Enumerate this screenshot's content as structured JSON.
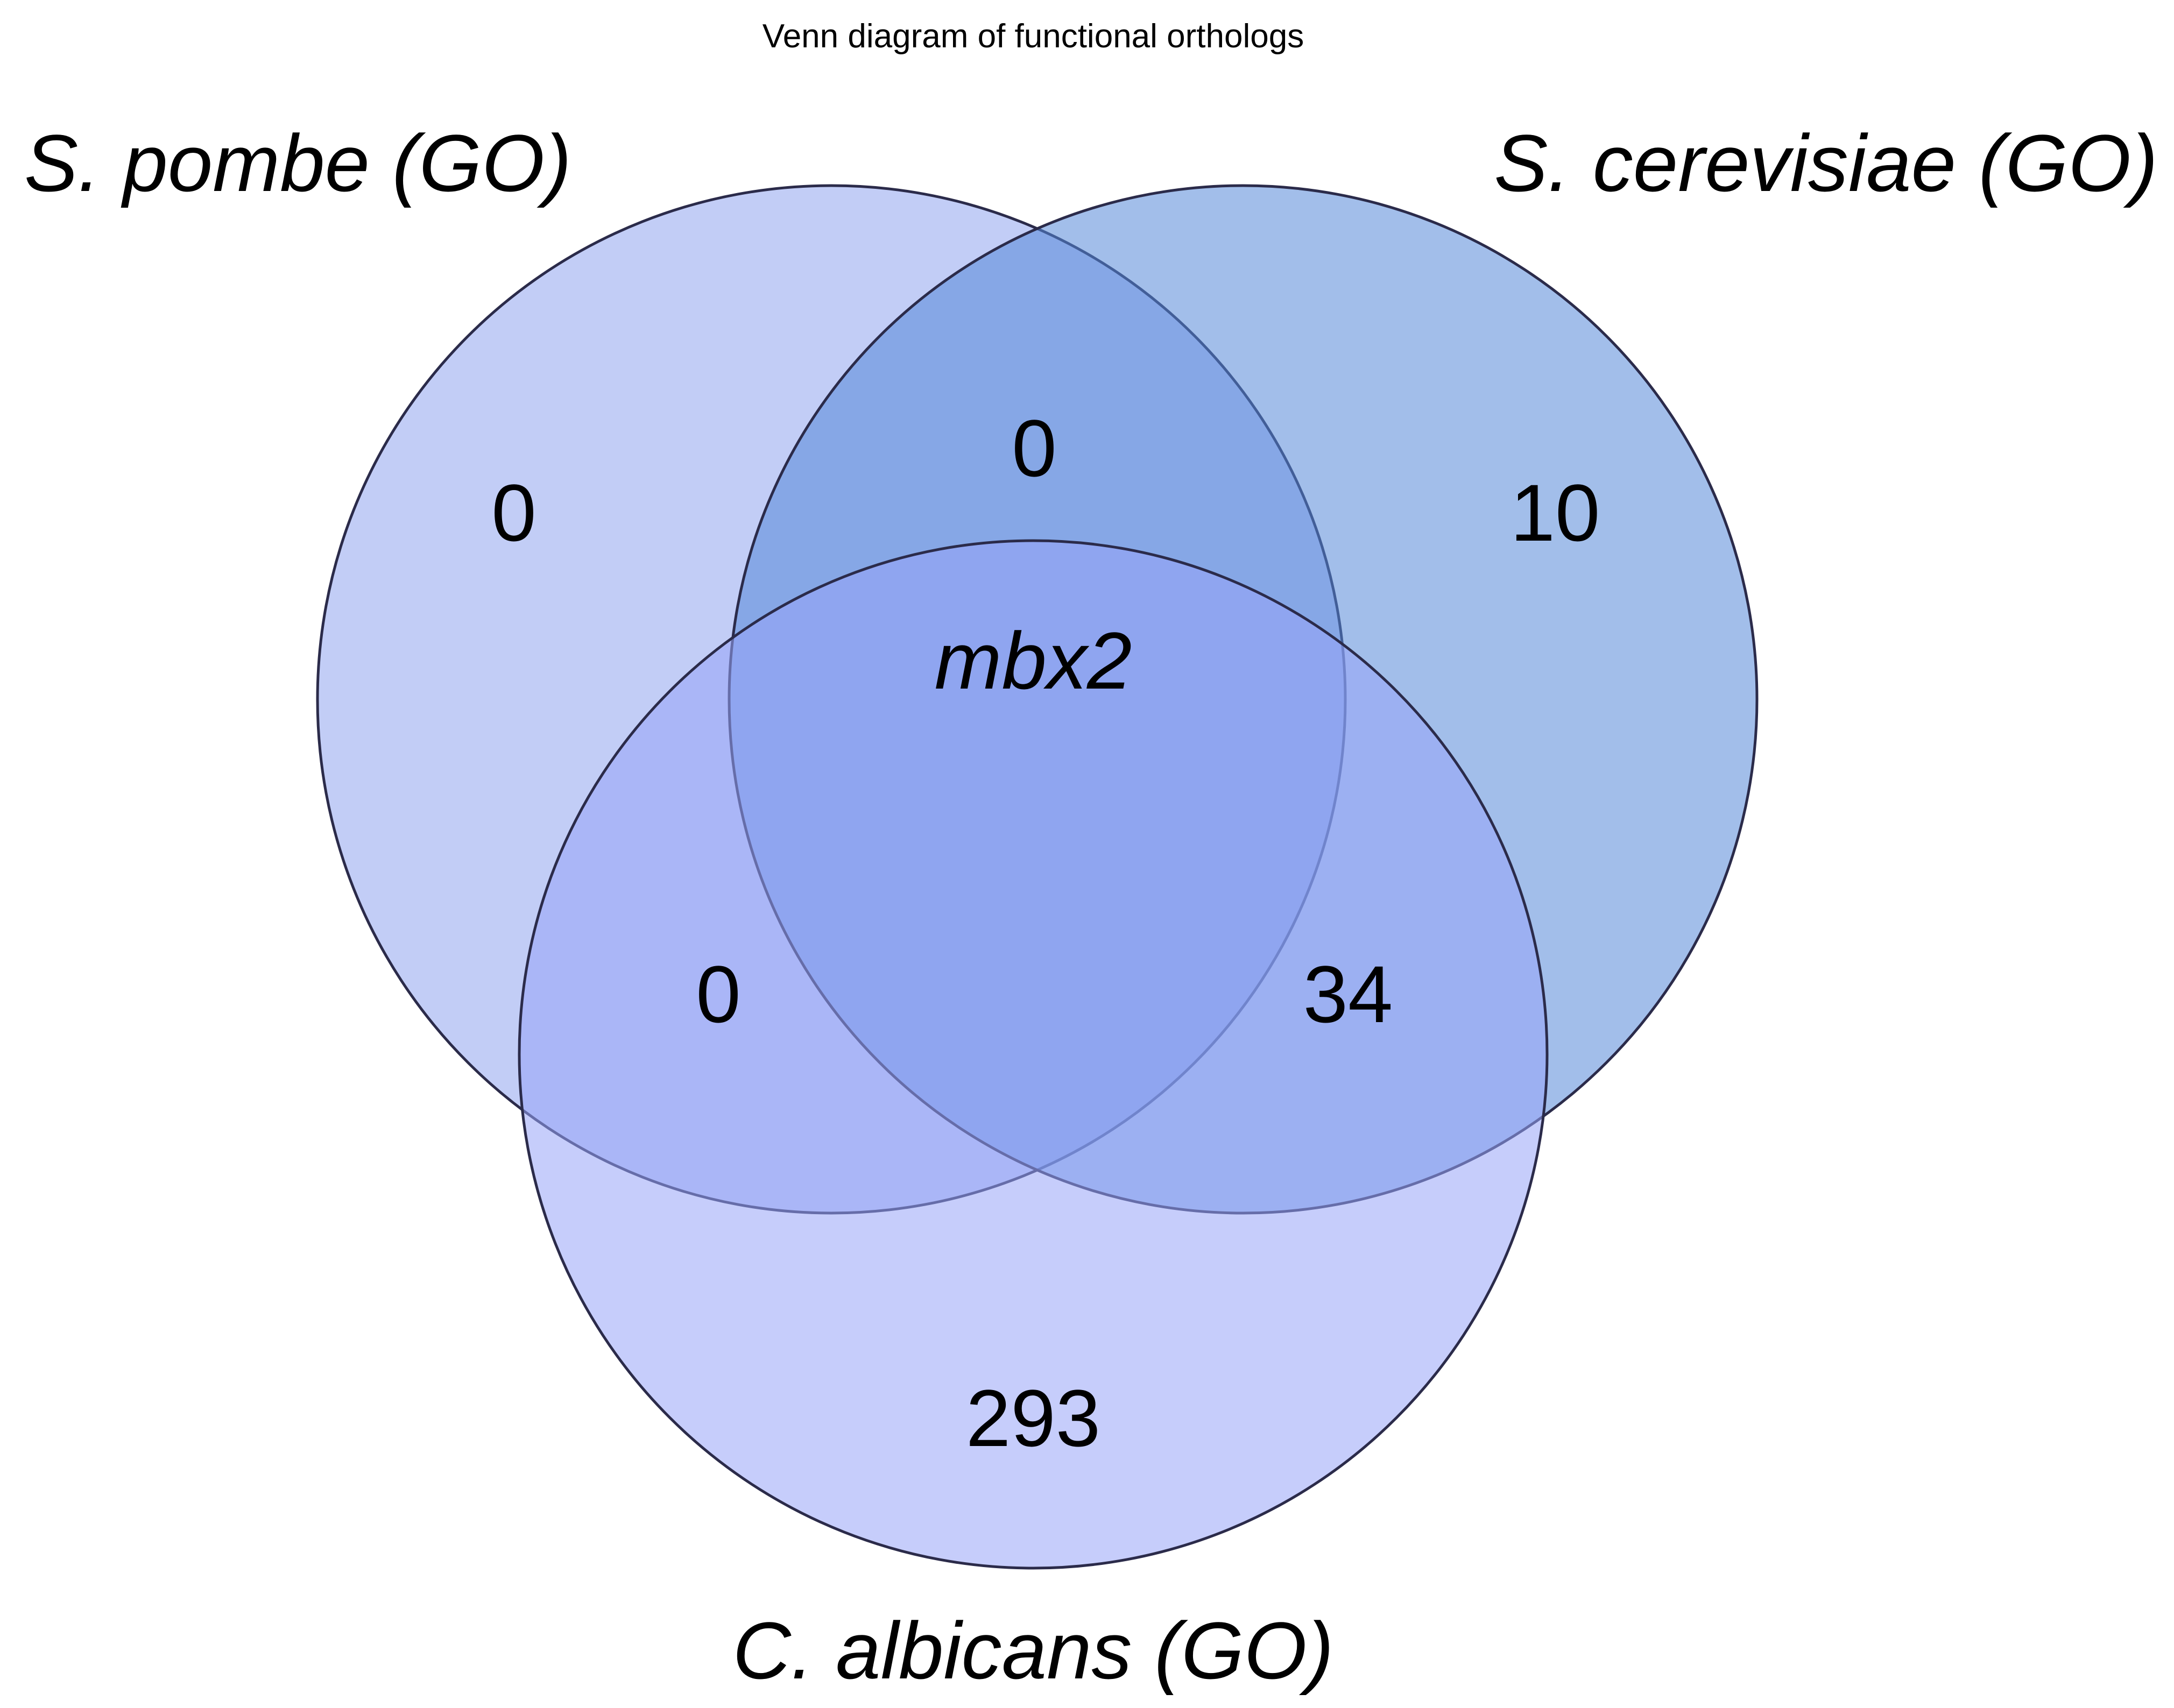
{
  "title": "Venn diagram of functional orthologs",
  "sets": {
    "a": {
      "label": "S. pombe (GO)",
      "color": "#9aabf0",
      "edge": "#2b2b4a"
    },
    "b": {
      "label": "S. cerevisiae (GO)",
      "color": "#5588d8",
      "edge": "#2b2b4a"
    },
    "c": {
      "label": "C. albicans (GO)",
      "color": "#98a4f8",
      "edge": "#2b2b4a"
    }
  },
  "regions": {
    "a_only": "0",
    "b_only": "10",
    "c_only": "293",
    "ab_only": "0",
    "ac_only": "0",
    "bc_only": "34",
    "abc": "mbx2"
  }
}
